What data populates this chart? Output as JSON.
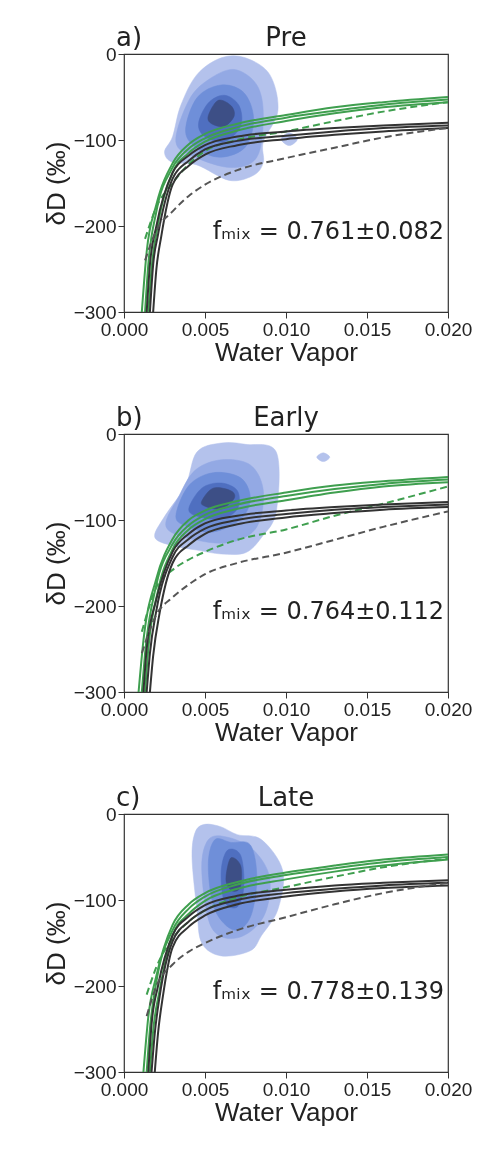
{
  "chart_data": [
    {
      "type": "line",
      "title": "Pre",
      "xlabel": "Water Vapor",
      "ylabel": "δD (‰)",
      "annotations": [
        "a)",
        "fₘᵢₓ = 0.761±0.082"
      ],
      "xlim": [
        0,
        0.02
      ],
      "ylim": [
        -300,
        0
      ],
      "xticks": [
        {
          "value": 0,
          "label": "0.000"
        },
        {
          "value": 0.005,
          "label": "0.005"
        },
        {
          "value": 0.01,
          "label": "0.010"
        },
        {
          "value": 0.015,
          "label": "0.015"
        },
        {
          "value": 0.02,
          "label": "0.020"
        }
      ],
      "yticks": [
        {
          "value": -300,
          "label": "−300"
        },
        {
          "value": -200,
          "label": "−200"
        },
        {
          "value": -100,
          "label": "−100"
        },
        {
          "value": 0,
          "label": "0"
        }
      ],
      "series": [
        {
          "color": "#3f9f4f",
          "x": [
            0.0013,
            0.0015,
            0.002,
            0.003,
            0.004,
            0.005,
            0.007,
            0.01,
            0.013,
            0.016,
            0.02
          ],
          "values": [
            -300,
            -245,
            -183,
            -132,
            -110,
            -98,
            -85,
            -74,
            -66,
            -59,
            -53
          ]
        },
        {
          "color": "#3f9f4f",
          "x": [
            0.0015,
            0.0017,
            0.0021,
            0.003,
            0.004,
            0.005,
            0.007,
            0.01,
            0.013,
            0.016,
            0.02
          ],
          "values": [
            -300,
            -250,
            -198,
            -138,
            -115,
            -102,
            -89,
            -78,
            -69,
            -62,
            -56
          ]
        },
        {
          "color": "#3f9f4f",
          "x": [
            0.0011,
            0.0014,
            0.002,
            0.003,
            0.004,
            0.005,
            0.007,
            0.01,
            0.013,
            0.016,
            0.02
          ],
          "values": [
            -300,
            -230,
            -175,
            -127,
            -105,
            -93,
            -81,
            -71,
            -62,
            -56,
            -50
          ]
        },
        {
          "color": "#3f9f4f",
          "line_style": "dashed",
          "x": [
            0.0013,
            0.002,
            0.003,
            0.004,
            0.005,
            0.007,
            0.01,
            0.013,
            0.016,
            0.02
          ],
          "values": [
            -215,
            -178,
            -150,
            -128,
            -113,
            -100,
            -90,
            -78,
            -67,
            -56
          ]
        },
        {
          "color": "#333333",
          "x": [
            0.0016,
            0.0018,
            0.0021,
            0.003,
            0.004,
            0.005,
            0.007,
            0.01,
            0.013,
            0.016,
            0.02
          ],
          "values": [
            -300,
            -245,
            -210,
            -145,
            -124,
            -111,
            -101,
            -95,
            -90,
            -86,
            -83
          ]
        },
        {
          "color": "#333333",
          "x": [
            0.0018,
            0.002,
            0.0023,
            0.003,
            0.004,
            0.005,
            0.007,
            0.01,
            0.013,
            0.016,
            0.02
          ],
          "values": [
            -300,
            -250,
            -212,
            -152,
            -130,
            -117,
            -106,
            -99,
            -94,
            -90,
            -86
          ]
        },
        {
          "color": "#333333",
          "x": [
            0.0014,
            0.0016,
            0.002,
            0.003,
            0.004,
            0.005,
            0.007,
            0.01,
            0.013,
            0.016,
            0.02
          ],
          "values": [
            -300,
            -245,
            -200,
            -138,
            -118,
            -106,
            -96,
            -90,
            -86,
            -83,
            -80
          ]
        },
        {
          "color": "#555555",
          "line_style": "dashed",
          "x": [
            0.0013,
            0.002,
            0.003,
            0.004,
            0.005,
            0.007,
            0.01,
            0.013,
            0.016,
            0.02
          ],
          "values": [
            -240,
            -205,
            -183,
            -165,
            -152,
            -135,
            -121,
            -109,
            -97,
            -86
          ]
        }
      ]
    },
    {
      "type": "line",
      "title": "Early",
      "xlabel": "Water Vapor",
      "ylabel": "δD (‰)",
      "annotations": [
        "b)",
        "fₘᵢₓ = 0.764±0.112"
      ],
      "xlim": [
        0,
        0.02
      ],
      "ylim": [
        -300,
        0
      ],
      "xticks": [
        {
          "value": 0,
          "label": "0.000"
        },
        {
          "value": 0.005,
          "label": "0.005"
        },
        {
          "value": 0.01,
          "label": "0.010"
        },
        {
          "value": 0.015,
          "label": "0.015"
        },
        {
          "value": 0.02,
          "label": "0.020"
        }
      ],
      "yticks": [
        {
          "value": -300,
          "label": "−300"
        },
        {
          "value": -200,
          "label": "−200"
        },
        {
          "value": -100,
          "label": "−100"
        },
        {
          "value": 0,
          "label": "0"
        }
      ],
      "series": [
        {
          "color": "#3f9f4f",
          "x": [
            0.0011,
            0.0013,
            0.002,
            0.003,
            0.004,
            0.005,
            0.007,
            0.01,
            0.013,
            0.016,
            0.02
          ],
          "values": [
            -300,
            -255,
            -175,
            -128,
            -106,
            -94,
            -82,
            -72,
            -64,
            -58,
            -53
          ]
        },
        {
          "color": "#3f9f4f",
          "x": [
            0.0013,
            0.0015,
            0.0021,
            0.003,
            0.004,
            0.005,
            0.007,
            0.01,
            0.013,
            0.016,
            0.02
          ],
          "values": [
            -300,
            -250,
            -182,
            -134,
            -111,
            -99,
            -87,
            -77,
            -68,
            -61,
            -56
          ]
        },
        {
          "color": "#3f9f4f",
          "x": [
            0.0009,
            0.0012,
            0.002,
            0.003,
            0.004,
            0.005,
            0.007,
            0.01,
            0.013,
            0.016,
            0.02
          ],
          "values": [
            -300,
            -240,
            -168,
            -122,
            -100,
            -89,
            -78,
            -68,
            -60,
            -55,
            -50
          ]
        },
        {
          "color": "#3f9f4f",
          "line_style": "dashed",
          "x": [
            0.0011,
            0.002,
            0.003,
            0.004,
            0.005,
            0.007,
            0.01,
            0.013,
            0.016,
            0.02
          ],
          "values": [
            -230,
            -178,
            -158,
            -146,
            -137,
            -123,
            -111,
            -95,
            -81,
            -61
          ]
        },
        {
          "color": "#333333",
          "x": [
            0.0014,
            0.0016,
            0.002,
            0.003,
            0.004,
            0.005,
            0.007,
            0.01,
            0.013,
            0.016,
            0.02
          ],
          "values": [
            -300,
            -255,
            -205,
            -143,
            -122,
            -110,
            -100,
            -93,
            -88,
            -85,
            -82
          ]
        },
        {
          "color": "#333333",
          "x": [
            0.0016,
            0.0018,
            0.0022,
            0.003,
            0.004,
            0.005,
            0.007,
            0.01,
            0.013,
            0.016,
            0.02
          ],
          "values": [
            -300,
            -258,
            -208,
            -150,
            -129,
            -116,
            -105,
            -97,
            -92,
            -88,
            -85
          ]
        },
        {
          "color": "#333333",
          "x": [
            0.0012,
            0.0014,
            0.002,
            0.003,
            0.004,
            0.005,
            0.007,
            0.01,
            0.013,
            0.016,
            0.02
          ],
          "values": [
            -300,
            -250,
            -192,
            -137,
            -116,
            -104,
            -95,
            -89,
            -85,
            -82,
            -79
          ]
        },
        {
          "color": "#555555",
          "line_style": "dashed",
          "x": [
            0.0011,
            0.002,
            0.003,
            0.004,
            0.005,
            0.007,
            0.01,
            0.013,
            0.016,
            0.02
          ],
          "values": [
            -255,
            -210,
            -190,
            -175,
            -163,
            -150,
            -138,
            -123,
            -108,
            -90
          ]
        }
      ]
    },
    {
      "type": "line",
      "title": "Late",
      "xlabel": "Water Vapor",
      "ylabel": "δD (‰)",
      "annotations": [
        "c)",
        "fₘᵢₓ = 0.778±0.139"
      ],
      "xlim": [
        0,
        0.02
      ],
      "ylim": [
        -300,
        0
      ],
      "xticks": [
        {
          "value": 0,
          "label": "0.000"
        },
        {
          "value": 0.005,
          "label": "0.005"
        },
        {
          "value": 0.01,
          "label": "0.010"
        },
        {
          "value": 0.015,
          "label": "0.015"
        },
        {
          "value": 0.02,
          "label": "0.020"
        }
      ],
      "yticks": [
        {
          "value": -300,
          "label": "−300"
        },
        {
          "value": -200,
          "label": "−200"
        },
        {
          "value": -100,
          "label": "−100"
        },
        {
          "value": 0,
          "label": "0"
        }
      ],
      "series": [
        {
          "color": "#3f9f4f",
          "x": [
            0.0014,
            0.0016,
            0.002,
            0.003,
            0.004,
            0.005,
            0.007,
            0.01,
            0.013,
            0.016,
            0.02
          ],
          "values": [
            -300,
            -250,
            -195,
            -135,
            -110,
            -96,
            -82,
            -71,
            -63,
            -56,
            -50
          ]
        },
        {
          "color": "#3f9f4f",
          "x": [
            0.0016,
            0.0018,
            0.0022,
            0.003,
            0.004,
            0.005,
            0.007,
            0.01,
            0.013,
            0.016,
            0.02
          ],
          "values": [
            -300,
            -252,
            -205,
            -141,
            -116,
            -101,
            -87,
            -76,
            -67,
            -60,
            -53
          ]
        },
        {
          "color": "#3f9f4f",
          "x": [
            0.0012,
            0.0015,
            0.002,
            0.003,
            0.004,
            0.005,
            0.007,
            0.01,
            0.013,
            0.016,
            0.02
          ],
          "values": [
            -300,
            -236,
            -188,
            -129,
            -105,
            -92,
            -79,
            -68,
            -60,
            -53,
            -47
          ]
        },
        {
          "color": "#3f9f4f",
          "line_style": "dashed",
          "x": [
            0.0014,
            0.002,
            0.003,
            0.004,
            0.005,
            0.007,
            0.01,
            0.013,
            0.016,
            0.02
          ],
          "values": [
            -210,
            -178,
            -145,
            -125,
            -112,
            -97,
            -85,
            -73,
            -62,
            -52
          ]
        },
        {
          "color": "#333333",
          "x": [
            0.0017,
            0.0019,
            0.0022,
            0.003,
            0.004,
            0.005,
            0.007,
            0.01,
            0.013,
            0.016,
            0.02
          ],
          "values": [
            -300,
            -255,
            -212,
            -148,
            -125,
            -112,
            -100,
            -92,
            -87,
            -83,
            -80
          ]
        },
        {
          "color": "#333333",
          "x": [
            0.0019,
            0.0021,
            0.0024,
            0.003,
            0.004,
            0.005,
            0.007,
            0.01,
            0.013,
            0.016,
            0.02
          ],
          "values": [
            -300,
            -255,
            -212,
            -155,
            -131,
            -118,
            -105,
            -96,
            -90,
            -86,
            -83
          ]
        },
        {
          "color": "#333333",
          "x": [
            0.0015,
            0.0017,
            0.0021,
            0.003,
            0.004,
            0.005,
            0.007,
            0.01,
            0.013,
            0.016,
            0.02
          ],
          "values": [
            -300,
            -245,
            -200,
            -141,
            -119,
            -106,
            -95,
            -88,
            -83,
            -80,
            -77
          ]
        },
        {
          "color": "#555555",
          "line_style": "dashed",
          "x": [
            0.0014,
            0.002,
            0.003,
            0.004,
            0.005,
            0.007,
            0.01,
            0.013,
            0.016,
            0.02
          ],
          "values": [
            -235,
            -200,
            -175,
            -160,
            -150,
            -135,
            -120,
            -105,
            -92,
            -80
          ]
        }
      ]
    }
  ]
}
